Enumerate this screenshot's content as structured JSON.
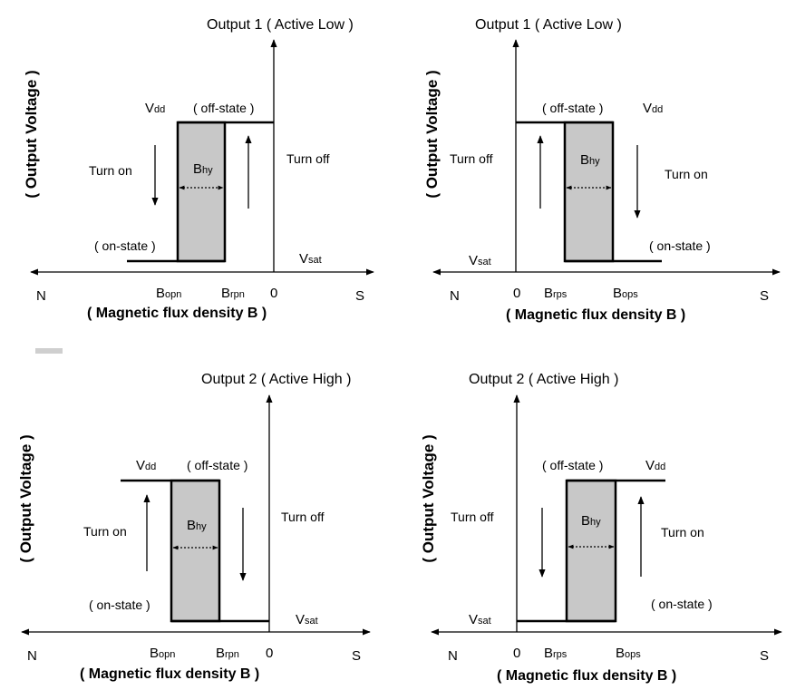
{
  "colors": {
    "ink": "#000000",
    "hysteresis_fill": "#c8c8c8",
    "tab_mark": "#cfcfcf"
  },
  "icons": [
    "arrow-up-icon",
    "arrow-down-icon",
    "double-arrow-icon"
  ],
  "panels": [
    {
      "title": "Output 1 ( Active Low )",
      "y_label": "( Output Voltage )",
      "x_label": "( Magnetic flux density B )",
      "axis_n": "N",
      "axis_s": "S",
      "zero": "0",
      "vdd": {
        "main": "V",
        "sub": "dd"
      },
      "vsat": {
        "main": "V",
        "sub": "sat"
      },
      "bhy": {
        "main": "B",
        "sub": "hy"
      },
      "b_left": {
        "main": "B",
        "sub": "opn"
      },
      "b_right": {
        "main": "B",
        "sub": "rpn"
      },
      "off_state": "( off-state )",
      "on_state": "( on-state )",
      "turn_on": "Turn on",
      "turn_off": "Turn off"
    },
    {
      "title": "Output 1 ( Active Low )",
      "y_label": "( Output Voltage )",
      "x_label": "( Magnetic flux density B )",
      "axis_n": "N",
      "axis_s": "S",
      "zero": "0",
      "vdd": {
        "main": "V",
        "sub": "dd"
      },
      "vsat": {
        "main": "V",
        "sub": "sat"
      },
      "bhy": {
        "main": "B",
        "sub": "hy"
      },
      "b_left": {
        "main": "B",
        "sub": "rps"
      },
      "b_right": {
        "main": "B",
        "sub": "ops"
      },
      "off_state": "( off-state )",
      "on_state": "( on-state )",
      "turn_on": "Turn on",
      "turn_off": "Turn off"
    },
    {
      "title": "Output 2 ( Active High )",
      "y_label": "( Output Voltage )",
      "x_label": "( Magnetic flux density B )",
      "axis_n": "N",
      "axis_s": "S",
      "zero": "0",
      "vdd": {
        "main": "V",
        "sub": "dd"
      },
      "vsat": {
        "main": "V",
        "sub": "sat"
      },
      "bhy": {
        "main": "B",
        "sub": "hy"
      },
      "b_left": {
        "main": "B",
        "sub": "opn"
      },
      "b_right": {
        "main": "B",
        "sub": "rpn"
      },
      "off_state": "( off-state )",
      "on_state": "( on-state )",
      "turn_on": "Turn on",
      "turn_off": "Turn off"
    },
    {
      "title": "Output 2 ( Active High )",
      "y_label": "( Output Voltage )",
      "x_label": "( Magnetic flux density B )",
      "axis_n": "N",
      "axis_s": "S",
      "zero": "0",
      "vdd": {
        "main": "V",
        "sub": "dd"
      },
      "vsat": {
        "main": "V",
        "sub": "sat"
      },
      "bhy": {
        "main": "B",
        "sub": "hy"
      },
      "b_left": {
        "main": "B",
        "sub": "rps"
      },
      "b_right": {
        "main": "B",
        "sub": "ops"
      },
      "off_state": "( off-state )",
      "on_state": "( on-state )",
      "turn_on": "Turn on",
      "turn_off": "Turn off"
    }
  ]
}
